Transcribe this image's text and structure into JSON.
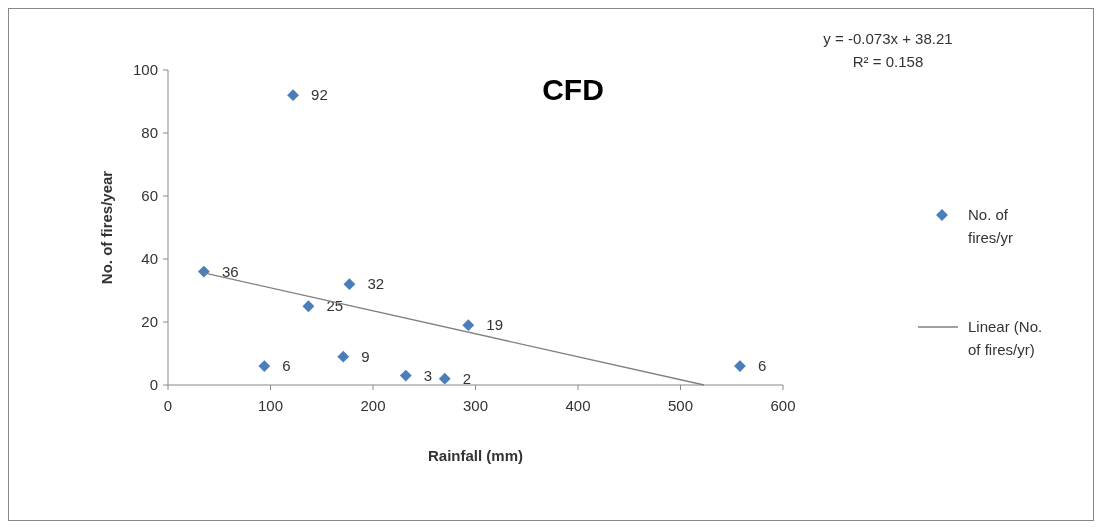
{
  "chart_data": {
    "type": "scatter",
    "title": "CFD",
    "xlabel": "Rainfall (mm)",
    "ylabel": "No. of fires/year",
    "annotations": [
      "y = -0.073x + 38.21",
      "R² = 0.158"
    ],
    "xlim": [
      0,
      600
    ],
    "xticks": [
      0,
      100,
      200,
      300,
      400,
      500,
      600
    ],
    "ylim": [
      0,
      100
    ],
    "yticks": [
      0,
      20,
      40,
      60,
      80,
      100
    ],
    "grid": false,
    "legend": "right",
    "series": [
      {
        "name": "No. of fires/yr",
        "color": "#4a7ebb",
        "x": [
          122,
          35,
          177,
          137,
          293,
          94,
          171,
          232,
          270,
          558
        ],
        "values": [
          92,
          36,
          32,
          25,
          19,
          6,
          9,
          3,
          2,
          6
        ],
        "marker": "diamond",
        "value_labels": [
          "92",
          "36",
          "32",
          "25",
          "19",
          "6",
          "9",
          "3",
          "2",
          "6"
        ]
      },
      {
        "name": "Linear (No. of fires/yr)",
        "type": "line",
        "color": "#808080",
        "x": [
          35,
          523
        ],
        "values": [
          35.6,
          0
        ]
      }
    ]
  }
}
